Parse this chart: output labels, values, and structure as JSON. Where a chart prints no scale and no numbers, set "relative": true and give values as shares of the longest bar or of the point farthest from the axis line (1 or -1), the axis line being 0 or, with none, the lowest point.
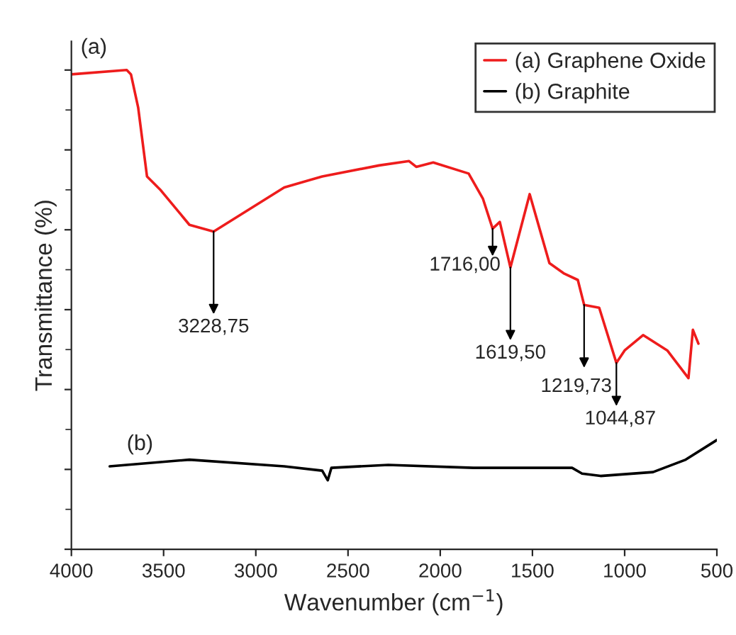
{
  "chart_data": {
    "type": "line",
    "relative": true,
    "xlabel": "Wavenumber (cm$^{−1}$)",
    "ylabel": "Transmittance (%)",
    "xlim": [
      4000,
      500
    ],
    "xticks": [
      4000,
      3500,
      3000,
      2500,
      2000,
      1500,
      1000,
      500
    ],
    "tick_labels": "x",
    "grid": false,
    "legend": "top right",
    "marker": "none",
    "line_style": "solid",
    "series": [
      {
        "name": "(a) Graphene Oxide",
        "color": "#ee1c1c",
        "x": [
          4000,
          3700,
          3677,
          3638,
          3590,
          3515,
          3360,
          3228.75,
          2846,
          2640,
          2331,
          2169,
          2130,
          2038,
          1846,
          1769,
          1716,
          1677,
          1619.5,
          1515,
          1408,
          1331,
          1254,
          1219.73,
          1138,
          1044.87,
          1000,
          900,
          769,
          654,
          630,
          600
        ],
        "values": [
          0.991,
          1.0,
          0.991,
          0.922,
          0.778,
          0.749,
          0.677,
          0.663,
          0.755,
          0.778,
          0.801,
          0.81,
          0.798,
          0.807,
          0.784,
          0.732,
          0.669,
          0.683,
          0.588,
          0.741,
          0.597,
          0.576,
          0.562,
          0.51,
          0.504,
          0.389,
          0.415,
          0.447,
          0.415,
          0.357,
          0.458,
          0.429
        ]
      },
      {
        "name": "(b) Graphite",
        "color": "#000000",
        "x": [
          3792,
          3360,
          2846,
          2640,
          2610,
          2590,
          2282,
          1820,
          1285,
          1231,
          1131,
          846,
          669,
          500
        ],
        "values": [
          0.173,
          0.187,
          0.173,
          0.164,
          0.144,
          0.17,
          0.176,
          0.17,
          0.17,
          0.158,
          0.153,
          0.161,
          0.187,
          0.228
        ]
      }
    ],
    "annotations": [
      {
        "text": "(a)",
        "x": 3950,
        "y": 1.0
      },
      {
        "text": "(b)",
        "x": 3700,
        "y": 0.173
      },
      {
        "text": "3228,75",
        "x": 3228.75,
        "y": 0.663
      },
      {
        "text": "1716,00",
        "x": 1716,
        "y": 0.669
      },
      {
        "text": "1619,50",
        "x": 1619.5,
        "y": 0.588
      },
      {
        "text": "1219,73",
        "x": 1219.73,
        "y": 0.51
      },
      {
        "text": "1044,87",
        "x": 1044.87,
        "y": 0.389
      }
    ]
  }
}
